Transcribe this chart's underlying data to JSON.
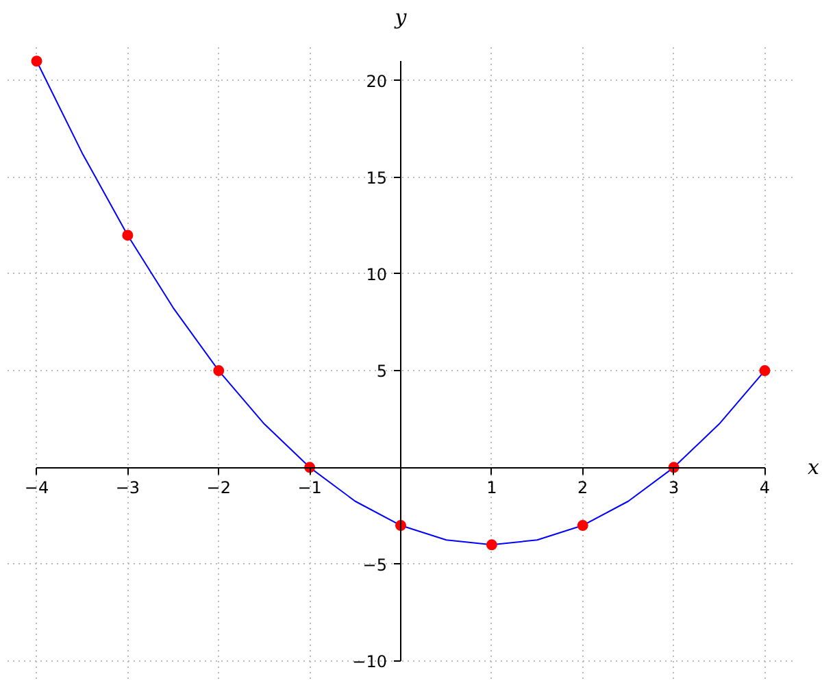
{
  "chart_data": {
    "type": "line",
    "xlabel": "x",
    "ylabel": "y",
    "xlim": [
      -4,
      4
    ],
    "ylim": [
      -10,
      21
    ],
    "xticks": [
      -4,
      -3,
      -2,
      -1,
      1,
      2,
      3,
      4
    ],
    "yticks": [
      -10,
      -5,
      5,
      10,
      15,
      20
    ],
    "grid": true,
    "line_style": "solid",
    "series": [
      {
        "marker": "none",
        "color": "#0000ff",
        "x": [
          -4,
          -3.5,
          -3,
          -2.5,
          -2,
          -1.5,
          -1,
          -0.5,
          0,
          0.5,
          1,
          1.5,
          2,
          2.5,
          3,
          3.5,
          4
        ],
        "values": [
          21,
          16.25,
          12,
          8.25,
          5,
          2.25,
          0,
          -1.75,
          -3,
          -3.75,
          -4,
          -3.75,
          -3,
          -1.75,
          0,
          2.25,
          5
        ]
      },
      {
        "type": "scatter",
        "marker": "circle",
        "color": "#ff0000",
        "x": [
          -4,
          -3,
          -2,
          -1,
          0,
          1,
          2,
          3,
          4
        ],
        "values": [
          21,
          12,
          5,
          0,
          -3,
          -4,
          -3,
          0,
          5
        ]
      }
    ]
  }
}
